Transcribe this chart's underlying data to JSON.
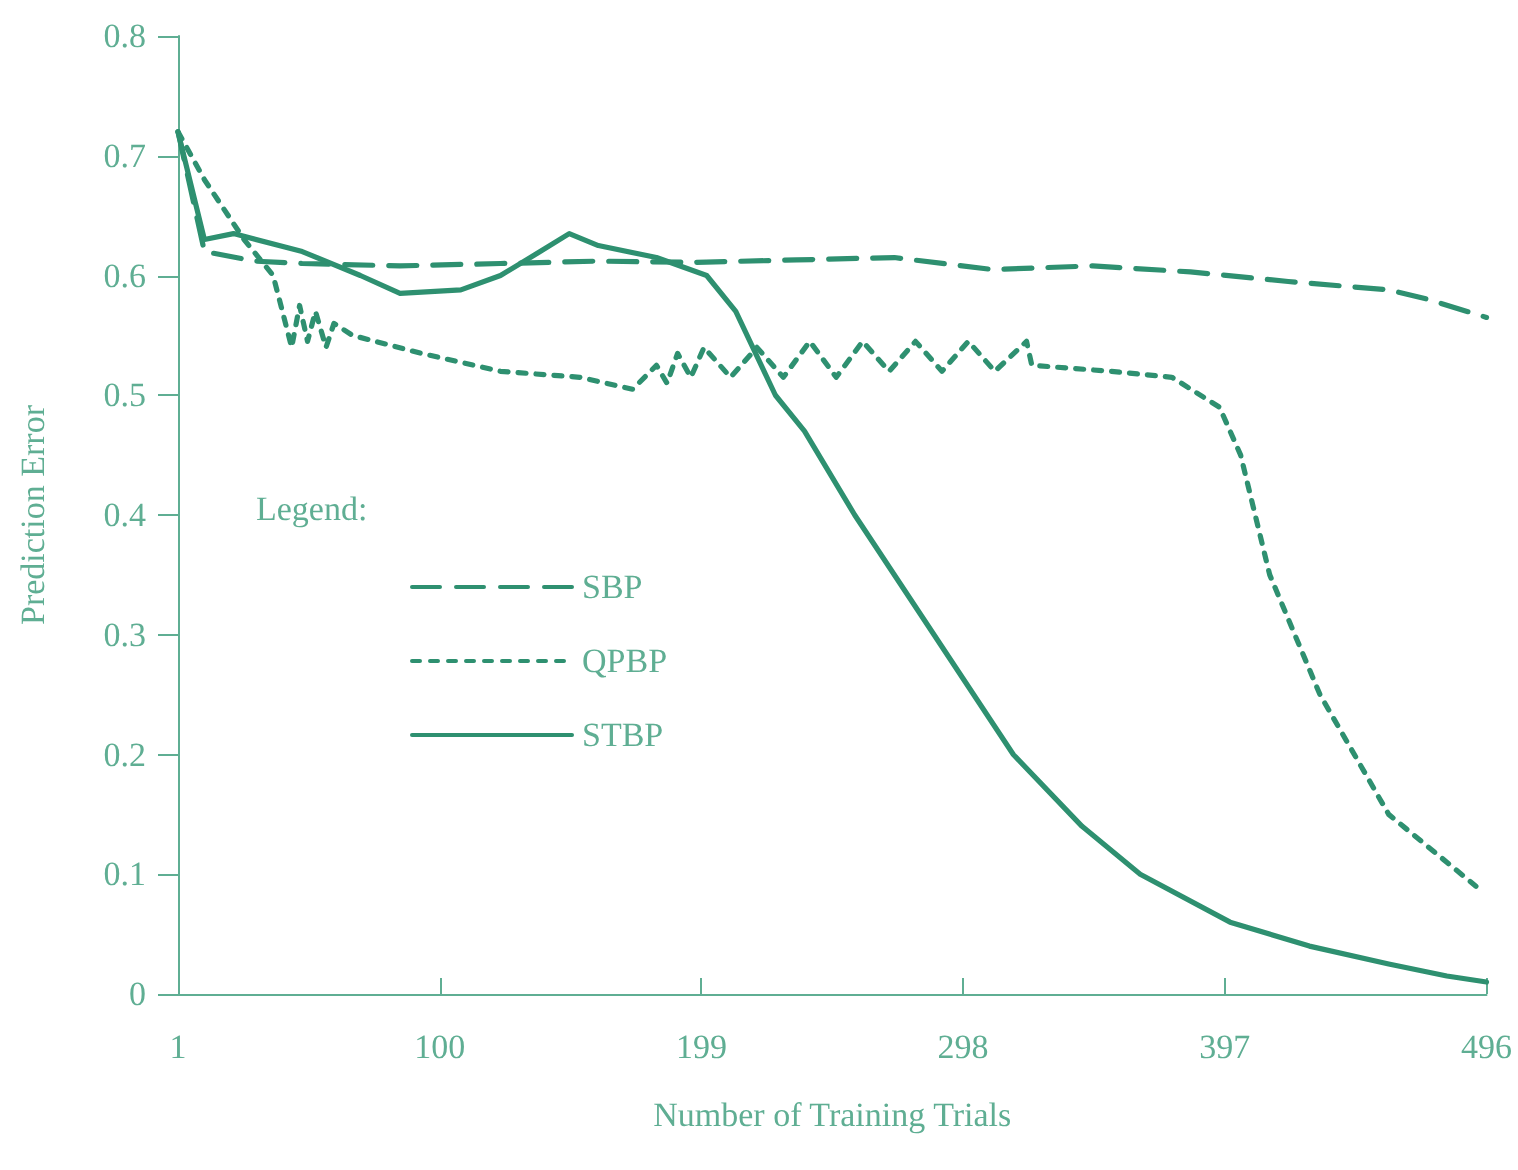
{
  "chart_data": {
    "type": "line",
    "xlabel": "Number of Training Trials",
    "ylabel": "Prediction Error",
    "legend_title": "Legend:",
    "legend": "left",
    "grid": false,
    "marker": "none",
    "xlim": [
      1,
      496
    ],
    "xticks": [
      1,
      100,
      199,
      298,
      397,
      496
    ],
    "ylim": [
      0,
      0.8
    ],
    "yticks": [
      0,
      0.1,
      0.2,
      0.3,
      0.4,
      0.5,
      0.6,
      0.7,
      0.8
    ],
    "series": [
      {
        "name": "SBP",
        "color": "#2e9070",
        "line_style": "dashed",
        "x": [
          1,
          11,
          30,
          48,
          85,
          123,
          160,
          197,
          235,
          272,
          309,
          347,
          384,
          421,
          459,
          474,
          496
        ],
        "values": [
          0.72,
          0.62,
          0.612,
          0.61,
          0.608,
          0.61,
          0.612,
          0.611,
          0.613,
          0.615,
          0.605,
          0.608,
          0.603,
          0.595,
          0.588,
          0.58,
          0.565
        ]
      },
      {
        "name": "QPBP",
        "color": "#2e9070",
        "line_style": "dotted",
        "x": [
          1,
          11,
          26,
          37,
          44,
          47,
          50,
          53,
          57,
          60,
          67,
          93,
          123,
          153,
          173,
          182,
          186,
          190,
          195,
          200,
          210,
          220,
          230,
          240,
          250,
          260,
          270,
          280,
          290,
          300,
          310,
          322,
          324,
          354,
          377,
          395,
          403,
          414,
          433,
          459,
          492
        ],
        "values": [
          0.72,
          0.68,
          0.63,
          0.6,
          0.54,
          0.575,
          0.545,
          0.57,
          0.54,
          0.56,
          0.55,
          0.535,
          0.52,
          0.515,
          0.505,
          0.525,
          0.51,
          0.535,
          0.515,
          0.54,
          0.515,
          0.54,
          0.515,
          0.545,
          0.515,
          0.545,
          0.52,
          0.545,
          0.52,
          0.545,
          0.52,
          0.545,
          0.525,
          0.52,
          0.515,
          0.49,
          0.45,
          0.35,
          0.25,
          0.15,
          0.09
        ]
      },
      {
        "name": "STBP",
        "color": "#2e9070",
        "line_style": "solid",
        "x": [
          1,
          11,
          22,
          48,
          70,
          85,
          108,
          123,
          138,
          149,
          160,
          182,
          201,
          212,
          227,
          238,
          257,
          287,
          317,
          343,
          365,
          399,
          429,
          459,
          481,
          496
        ],
        "values": [
          0.72,
          0.63,
          0.635,
          0.62,
          0.6,
          0.585,
          0.588,
          0.6,
          0.62,
          0.635,
          0.625,
          0.615,
          0.6,
          0.57,
          0.5,
          0.47,
          0.4,
          0.3,
          0.2,
          0.14,
          0.1,
          0.06,
          0.04,
          0.025,
          0.015,
          0.01
        ]
      }
    ]
  }
}
